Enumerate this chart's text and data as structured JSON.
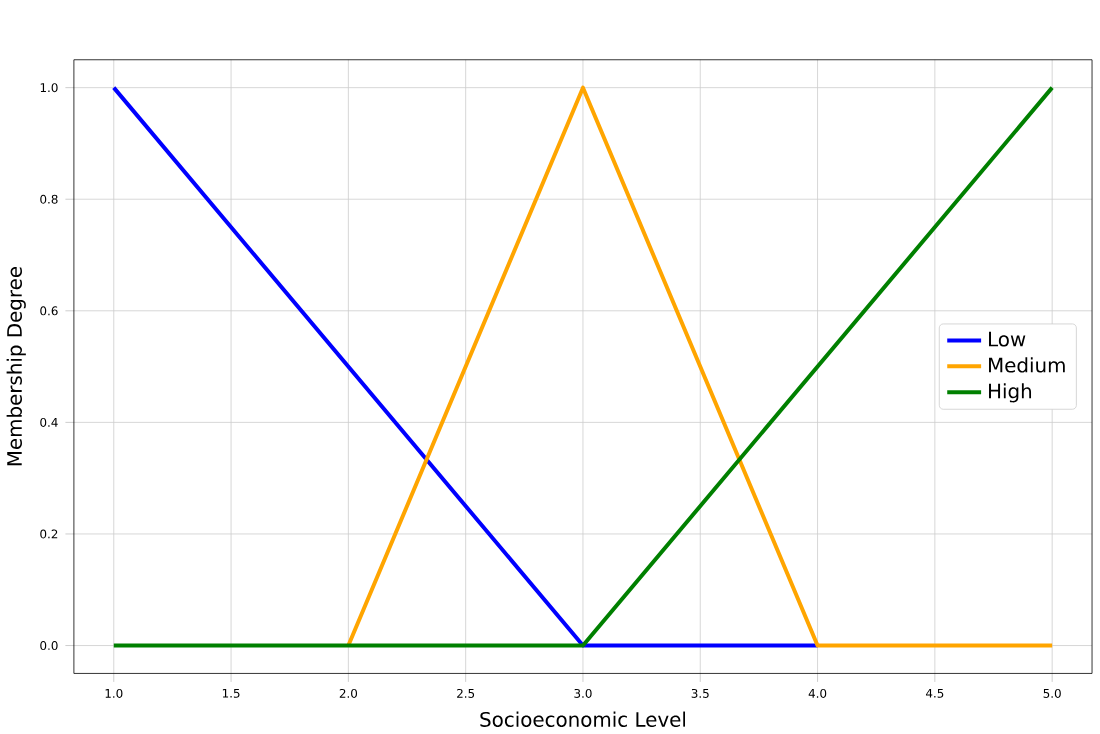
{
  "chart_data": {
    "type": "line",
    "xlabel": "Socioeconomic Level",
    "ylabel": "Membership Degree",
    "xlim": [
      0.83,
      5.17
    ],
    "ylim": [
      -0.05,
      1.05
    ],
    "xticks": [
      {
        "value": 1,
        "label": "1.0"
      },
      {
        "value": 1.5,
        "label": "1.5"
      },
      {
        "value": 2,
        "label": "2.0"
      },
      {
        "value": 2.5,
        "label": "2.5"
      },
      {
        "value": 3,
        "label": "3.0"
      },
      {
        "value": 3.5,
        "label": "3.5"
      },
      {
        "value": 4,
        "label": "4.0"
      },
      {
        "value": 4.5,
        "label": "4.5"
      },
      {
        "value": 5,
        "label": "5.0"
      }
    ],
    "yticks": [
      {
        "value": 0,
        "label": "0.0"
      },
      {
        "value": 0.2,
        "label": "0.2"
      },
      {
        "value": 0.4,
        "label": "0.4"
      },
      {
        "value": 0.6,
        "label": "0.6"
      },
      {
        "value": 0.8,
        "label": "0.8"
      },
      {
        "value": 1,
        "label": "1.0"
      }
    ],
    "grid": true,
    "legend": "right",
    "line_style": "solid",
    "series": [
      {
        "name": "Low",
        "color": "#0000ff",
        "x": [
          1,
          3,
          4
        ],
        "values": [
          1,
          0,
          0
        ]
      },
      {
        "name": "Medium",
        "color": "#ffa500",
        "x": [
          2,
          3,
          4,
          5
        ],
        "values": [
          0,
          1,
          0,
          0
        ]
      },
      {
        "name": "High",
        "color": "#008000",
        "x": [
          1,
          3,
          5
        ],
        "values": [
          0,
          0,
          1
        ]
      }
    ]
  }
}
